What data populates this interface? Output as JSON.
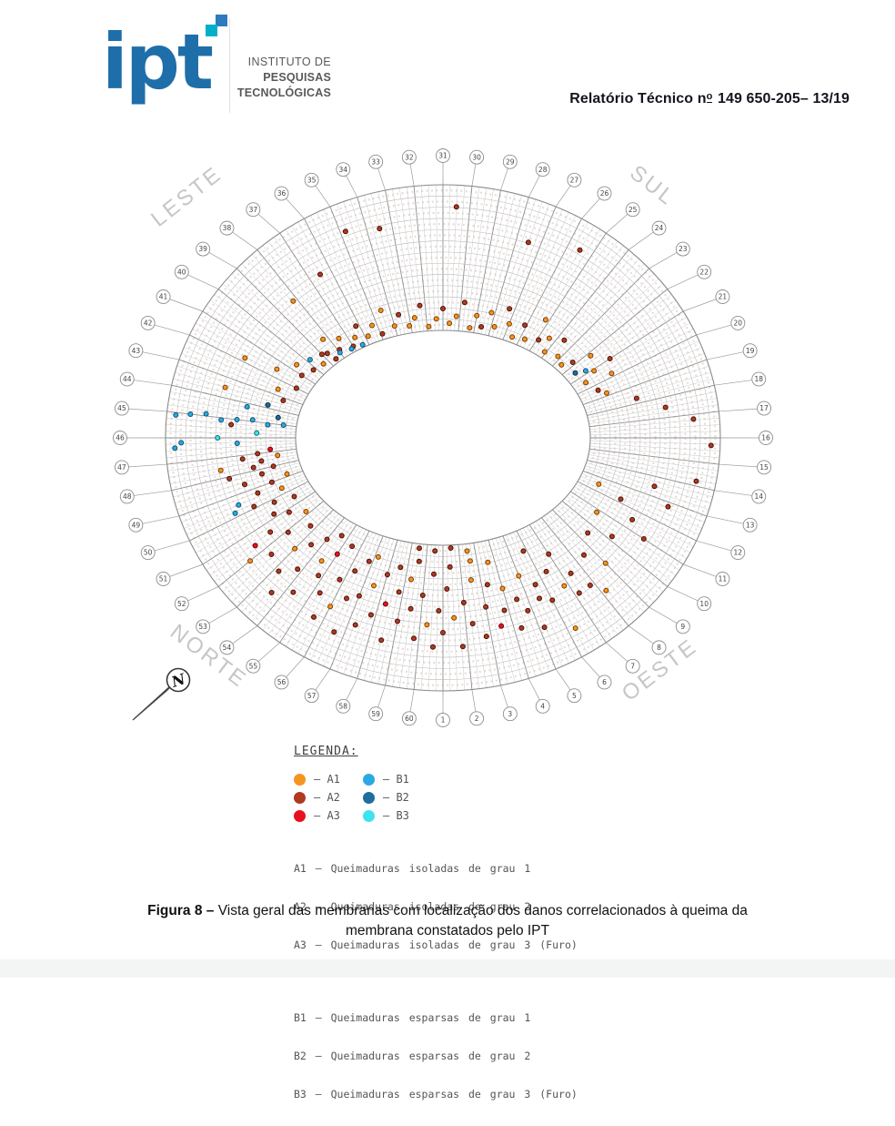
{
  "logo": {
    "wordmark": "ipt",
    "org_lines": [
      "INSTITUTO DE",
      "PESQUISAS",
      "TECNOLÓGICAS"
    ],
    "square_colors": [
      "#2b7bbe",
      "#00afc8"
    ],
    "wordmark_color": "#1e6ea9"
  },
  "header": {
    "report_prefix": "Relatório Técnico n",
    "report_ordinal": "o",
    "report_rest": " 149 650-205– 13/19"
  },
  "diagram": {
    "compass": {
      "top_left": "LESTE",
      "top_right": "SUL",
      "bottom_left": "NORTE",
      "bottom_right": "OESTE"
    },
    "north_marker": "N",
    "spoke_start": 1,
    "spoke_end": 60,
    "colors": {
      "A1": "#F7941E",
      "A2": "#AE3A20",
      "A3": "#E8101E",
      "B1": "#2BAAE2",
      "B2": "#1F6E9C",
      "B3": "#3FE3EE"
    },
    "dot_strokes": {
      "A1": "#7a3c00",
      "A2": "#4a0f06",
      "A3": "#6d000a",
      "B1": "#0e4f74",
      "B2": "#092c40",
      "B3": "#0a6d75"
    },
    "dots": [
      [
        23.2,
        0.08,
        "A1"
      ],
      [
        23.6,
        0.2,
        "A2"
      ],
      [
        24.1,
        0.05,
        "A1"
      ],
      [
        24.4,
        0.15,
        "A1"
      ],
      [
        24.9,
        0.1,
        "A2"
      ],
      [
        25.2,
        0.25,
        "A1"
      ],
      [
        25.7,
        0.06,
        "A1"
      ],
      [
        26.1,
        0.15,
        "A2"
      ],
      [
        26.5,
        0.04,
        "A1"
      ],
      [
        27.0,
        0.12,
        "A1"
      ],
      [
        27.3,
        0.22,
        "A2"
      ],
      [
        27.8,
        0.07,
        "A1"
      ],
      [
        28.2,
        0.16,
        "A1"
      ],
      [
        28.6,
        0.05,
        "A2"
      ],
      [
        29.0,
        0.12,
        "A1"
      ],
      [
        29.3,
        0.03,
        "A1"
      ],
      [
        29.8,
        0.2,
        "A2"
      ],
      [
        30.2,
        0.1,
        "A1"
      ],
      [
        30.6,
        0.05,
        "A1"
      ],
      [
        31.0,
        0.15,
        "A2"
      ],
      [
        31.4,
        0.08,
        "A1"
      ],
      [
        31.9,
        0.03,
        "A1"
      ],
      [
        32.3,
        0.18,
        "A2"
      ],
      [
        32.7,
        0.1,
        "A1"
      ],
      [
        33.1,
        0.05,
        "A1"
      ],
      [
        33.6,
        0.14,
        "A2"
      ],
      [
        34.0,
        0.07,
        "A1"
      ],
      [
        34.5,
        0.2,
        "A1"
      ],
      [
        34.9,
        0.04,
        "A2"
      ],
      [
        35.3,
        0.12,
        "A1"
      ],
      [
        35.8,
        0.06,
        "A1"
      ],
      [
        36.2,
        0.16,
        "A2"
      ],
      [
        36.6,
        0.09,
        "A1"
      ],
      [
        37.0,
        0.04,
        "A2"
      ],
      [
        37.5,
        0.14,
        "A1"
      ],
      [
        37.9,
        0.07,
        "A2"
      ],
      [
        38.3,
        0.2,
        "A1"
      ],
      [
        38.7,
        0.1,
        "A2"
      ],
      [
        36.4,
        0.02,
        "B1"
      ],
      [
        37.2,
        0.03,
        "B1"
      ],
      [
        38.0,
        0.05,
        "B1"
      ],
      [
        38.5,
        0.03,
        "A2"
      ],
      [
        39.0,
        0.12,
        "A2"
      ],
      [
        39.4,
        0.06,
        "A1"
      ],
      [
        39.8,
        0.15,
        "B1"
      ],
      [
        40.2,
        0.08,
        "A2"
      ],
      [
        40.6,
        0.2,
        "A1"
      ],
      [
        41.0,
        0.12,
        "A2"
      ],
      [
        41.5,
        0.3,
        "A1"
      ],
      [
        42.0,
        0.1,
        "A2"
      ],
      [
        42.6,
        0.22,
        "A1"
      ],
      [
        43.2,
        0.15,
        "A2"
      ],
      [
        33.5,
        0.75,
        "A2"
      ],
      [
        34.8,
        0.8,
        "A2"
      ],
      [
        30.5,
        0.85,
        "A2"
      ],
      [
        27.5,
        0.7,
        "A2"
      ],
      [
        25.5,
        0.8,
        "A2"
      ],
      [
        36.5,
        0.6,
        "A2"
      ],
      [
        38.2,
        0.55,
        "A1"
      ],
      [
        41.8,
        0.55,
        "A1"
      ],
      [
        43.5,
        0.6,
        "A1"
      ],
      [
        20.5,
        0.1,
        "A1"
      ],
      [
        20.9,
        0.2,
        "A1"
      ],
      [
        21.2,
        0.15,
        "B1"
      ],
      [
        21.5,
        0.08,
        "B2"
      ],
      [
        21.8,
        0.25,
        "A1"
      ],
      [
        22.2,
        0.12,
        "A2"
      ],
      [
        22.6,
        0.05,
        "A1"
      ],
      [
        21.0,
        0.35,
        "A2"
      ],
      [
        20.2,
        0.3,
        "A1"
      ],
      [
        19.6,
        0.15,
        "A2"
      ],
      [
        14.2,
        0.85,
        "A2"
      ],
      [
        15.7,
        0.93,
        "A2"
      ],
      [
        16.8,
        0.8,
        "A2"
      ],
      [
        17.5,
        0.6,
        "A2"
      ],
      [
        18.3,
        0.4,
        "A2"
      ],
      [
        13.5,
        0.55,
        "A2"
      ],
      [
        12.8,
        0.7,
        "A2"
      ],
      [
        19.2,
        0.2,
        "A1"
      ],
      [
        9.5,
        0.3,
        "A2"
      ],
      [
        10.2,
        0.45,
        "A2"
      ],
      [
        10.8,
        0.25,
        "A1"
      ],
      [
        11.5,
        0.5,
        "A2"
      ],
      [
        12.2,
        0.35,
        "A2"
      ],
      [
        9.0,
        0.55,
        "A1"
      ],
      [
        8.5,
        0.4,
        "A2"
      ],
      [
        11.0,
        0.65,
        "A2"
      ],
      [
        12.5,
        0.15,
        "A1"
      ],
      [
        8.2,
        0.7,
        "A1"
      ],
      [
        6.3,
        0.8,
        "A1"
      ],
      [
        7.2,
        0.6,
        "A2"
      ],
      [
        5.5,
        0.5,
        "A2"
      ],
      [
        45.0,
        0.1,
        "B1"
      ],
      [
        45.1,
        0.22,
        "B1"
      ],
      [
        44.9,
        0.34,
        "B1"
      ],
      [
        45.0,
        0.46,
        "B1"
      ],
      [
        45.1,
        0.58,
        "B1"
      ],
      [
        44.9,
        0.7,
        "B1"
      ],
      [
        45.0,
        0.82,
        "B1"
      ],
      [
        45.1,
        0.93,
        "B1"
      ],
      [
        45.3,
        0.5,
        "A2"
      ],
      [
        46.2,
        0.88,
        "B1"
      ],
      [
        46.4,
        0.93,
        "B1"
      ],
      [
        46.0,
        0.6,
        "B3"
      ],
      [
        46.3,
        0.45,
        "B1"
      ],
      [
        45.7,
        0.3,
        "B3"
      ],
      [
        44.5,
        0.15,
        "B2"
      ],
      [
        44.2,
        0.4,
        "B1"
      ],
      [
        43.8,
        0.25,
        "B2"
      ],
      [
        47.0,
        0.3,
        "A2"
      ],
      [
        47.2,
        0.42,
        "A2"
      ],
      [
        47.5,
        0.28,
        "A2"
      ],
      [
        47.8,
        0.35,
        "A2"
      ],
      [
        47.3,
        0.15,
        "A1"
      ],
      [
        48.0,
        0.2,
        "A2"
      ],
      [
        48.3,
        0.3,
        "A2"
      ],
      [
        48.6,
        0.45,
        "A2"
      ],
      [
        48.1,
        0.55,
        "A2"
      ],
      [
        49.0,
        0.25,
        "A2"
      ],
      [
        49.3,
        0.38,
        "A2"
      ],
      [
        49.6,
        0.2,
        "A1"
      ],
      [
        49.9,
        0.45,
        "A2"
      ],
      [
        50.2,
        0.3,
        "A2"
      ],
      [
        48.8,
        0.12,
        "A1"
      ],
      [
        49.5,
        0.55,
        "B1"
      ],
      [
        49.8,
        0.6,
        "B1"
      ],
      [
        50.5,
        0.15,
        "A2"
      ],
      [
        50.8,
        0.35,
        "A2"
      ],
      [
        47.6,
        0.6,
        "A1"
      ],
      [
        46.8,
        0.2,
        "A3"
      ],
      [
        51.2,
        0.25,
        "A2"
      ],
      [
        51.5,
        0.45,
        "A2"
      ],
      [
        51.8,
        0.15,
        "A1"
      ],
      [
        52.1,
        0.35,
        "A2"
      ],
      [
        52.4,
        0.55,
        "A2"
      ],
      [
        52.7,
        0.2,
        "A2"
      ],
      [
        53.0,
        0.4,
        "A1"
      ],
      [
        53.2,
        0.6,
        "A2"
      ],
      [
        53.5,
        0.3,
        "A2"
      ],
      [
        53.8,
        0.5,
        "A2"
      ],
      [
        54.0,
        0.2,
        "A2"
      ],
      [
        54.3,
        0.65,
        "A2"
      ],
      [
        54.5,
        0.35,
        "A1"
      ],
      [
        54.8,
        0.45,
        "A2"
      ],
      [
        55.0,
        0.25,
        "A3"
      ],
      [
        55.3,
        0.55,
        "A2"
      ],
      [
        55.5,
        0.15,
        "A2"
      ],
      [
        55.8,
        0.4,
        "A2"
      ],
      [
        56.0,
        0.6,
        "A1"
      ],
      [
        56.3,
        0.3,
        "A2"
      ],
      [
        56.5,
        0.5,
        "A2"
      ],
      [
        56.8,
        0.2,
        "A2"
      ],
      [
        57.0,
        0.45,
        "A2"
      ],
      [
        57.3,
        0.65,
        "A2"
      ],
      [
        57.5,
        0.35,
        "A1"
      ],
      [
        57.8,
        0.55,
        "A2"
      ],
      [
        58.0,
        0.25,
        "A2"
      ],
      [
        58.3,
        0.45,
        "A3"
      ],
      [
        58.5,
        0.7,
        "A2"
      ],
      [
        58.8,
        0.35,
        "A2"
      ],
      [
        59.0,
        0.55,
        "A2"
      ],
      [
        59.3,
        0.25,
        "A1"
      ],
      [
        59.5,
        0.45,
        "A2"
      ],
      [
        59.8,
        0.65,
        "A2"
      ],
      [
        60.0,
        0.35,
        "A2"
      ],
      [
        60.3,
        0.55,
        "A1"
      ],
      [
        60.5,
        0.2,
        "A2"
      ],
      [
        60.8,
        0.45,
        "A2"
      ],
      [
        1.0,
        0.6,
        "A2"
      ],
      [
        1.2,
        0.3,
        "A2"
      ],
      [
        1.5,
        0.5,
        "A1"
      ],
      [
        1.8,
        0.7,
        "A2"
      ],
      [
        2.0,
        0.4,
        "A2"
      ],
      [
        2.3,
        0.55,
        "A2"
      ],
      [
        2.5,
        0.25,
        "A1"
      ],
      [
        2.8,
        0.65,
        "A2"
      ],
      [
        3.0,
        0.45,
        "A2"
      ],
      [
        3.3,
        0.3,
        "A2"
      ],
      [
        3.5,
        0.6,
        "A3"
      ],
      [
        3.8,
        0.5,
        "A2"
      ],
      [
        4.0,
        0.35,
        "A1"
      ],
      [
        4.3,
        0.65,
        "A2"
      ],
      [
        4.5,
        0.45,
        "A2"
      ],
      [
        4.8,
        0.55,
        "A2"
      ],
      [
        5.0,
        0.3,
        "A1"
      ],
      [
        5.2,
        0.7,
        "A2"
      ],
      [
        5.6,
        0.4,
        "A2"
      ],
      [
        6.0,
        0.55,
        "A2"
      ],
      [
        6.4,
        0.35,
        "A2"
      ],
      [
        6.8,
        0.5,
        "A1"
      ],
      [
        7.0,
        0.25,
        "A2"
      ],
      [
        7.4,
        0.45,
        "A2"
      ],
      [
        7.8,
        0.6,
        "A2"
      ],
      [
        52.0,
        0.7,
        "A1"
      ],
      [
        53.6,
        0.75,
        "A2"
      ],
      [
        55.6,
        0.72,
        "A2"
      ],
      [
        57.2,
        0.15,
        "A1"
      ],
      [
        58.6,
        0.18,
        "A2"
      ],
      [
        59.6,
        0.12,
        "A2"
      ],
      [
        1.4,
        0.15,
        "A2"
      ],
      [
        2.6,
        0.12,
        "A1"
      ],
      [
        56.6,
        0.75,
        "A2"
      ],
      [
        54.6,
        0.12,
        "A2"
      ],
      [
        51.6,
        0.6,
        "A3"
      ],
      [
        60.6,
        0.7,
        "A2"
      ],
      [
        3.6,
        0.15,
        "A1"
      ],
      [
        5.8,
        0.15,
        "A2"
      ],
      [
        59.5,
        0.03,
        "A2"
      ],
      [
        60.5,
        0.04,
        "A2"
      ],
      [
        1.5,
        0.02,
        "A2"
      ],
      [
        2.5,
        0.05,
        "A1"
      ]
    ]
  },
  "legend": {
    "title": "LEGENDA:",
    "items": [
      {
        "code": "A1",
        "label": "– A1"
      },
      {
        "code": "A2",
        "label": "– A2"
      },
      {
        "code": "A3",
        "label": "– A3"
      },
      {
        "code": "B1",
        "label": "– B1"
      },
      {
        "code": "B2",
        "label": "– B2"
      },
      {
        "code": "B3",
        "label": "– B3"
      }
    ],
    "descriptions_a": [
      "A1 – Queimaduras isoladas de grau 1",
      "A2 – Queimaduras isoladas de grau 2",
      "A3 – Queimaduras isoladas de grau 3 (Furo)"
    ],
    "descriptions_b": [
      "B1 – Queimaduras esparsas de grau 1",
      "B2 – Queimaduras esparsas de grau 2",
      "B3 – Queimaduras esparsas de grau 3 (Furo)"
    ]
  },
  "caption": {
    "label": "Figura 8 –",
    "rest": "Vista geral das membranas com localização dos danos correlacionados à queima da",
    "line2": "membrana constatados pelo IPT"
  }
}
